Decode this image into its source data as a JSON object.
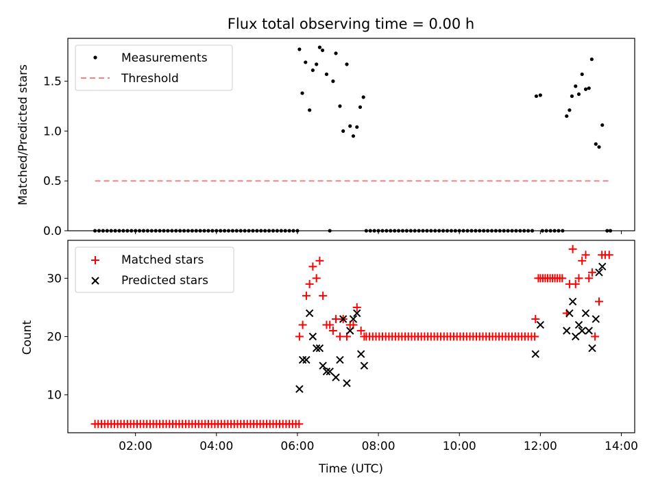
{
  "figure": {
    "title": "Flux total observing time = 0.00 h",
    "xlabel": "Time (UTC)",
    "xticks": [
      "02:00",
      "04:00",
      "06:00",
      "08:00",
      "10:00",
      "12:00",
      "14:00"
    ],
    "xtick_hours": [
      2,
      4,
      6,
      8,
      10,
      12,
      14
    ],
    "xlim_hours": [
      0.33,
      14.33
    ]
  },
  "colors": {
    "measurements": "#000000",
    "threshold": "#ff7f7f",
    "matched": "#ff0000",
    "predicted": "#000000"
  },
  "chart_data": [
    {
      "type": "scatter",
      "ylabel": "Matched/Predicted stars",
      "ylim": [
        0,
        1.93
      ],
      "yticks": [
        0.0,
        0.5,
        1.0,
        1.5
      ],
      "ytick_labels": [
        "0.0",
        "0.5",
        "1.0",
        "1.5"
      ],
      "legend": {
        "position": "upper-left",
        "entries": [
          "Measurements",
          "Threshold"
        ]
      },
      "threshold": {
        "value": 0.5,
        "x_range": [
          1.0,
          13.7
        ]
      },
      "measurements": {
        "zero_ranges": [
          [
            1.0,
            6.0,
            0.1
          ],
          [
            7.7,
            11.85,
            0.1
          ],
          [
            12.05,
            12.55,
            0.1
          ]
        ],
        "points": [
          [
            6.05,
            1.82
          ],
          [
            6.12,
            1.38
          ],
          [
            6.2,
            1.69
          ],
          [
            6.3,
            1.21
          ],
          [
            6.38,
            1.61
          ],
          [
            6.47,
            1.67
          ],
          [
            6.55,
            1.84
          ],
          [
            6.62,
            1.81
          ],
          [
            6.72,
            1.57
          ],
          [
            6.8,
            0.0
          ],
          [
            6.88,
            1.5
          ],
          [
            6.95,
            1.78
          ],
          [
            7.05,
            1.25
          ],
          [
            7.13,
            1.0
          ],
          [
            7.22,
            1.67
          ],
          [
            7.3,
            1.05
          ],
          [
            7.38,
            0.95
          ],
          [
            7.47,
            1.04
          ],
          [
            7.55,
            1.24
          ],
          [
            7.63,
            1.34
          ],
          [
            11.9,
            1.35
          ],
          [
            12.0,
            1.36
          ],
          [
            12.65,
            1.15
          ],
          [
            12.72,
            1.21
          ],
          [
            12.78,
            1.35
          ],
          [
            12.87,
            1.45
          ],
          [
            12.95,
            1.37
          ],
          [
            13.03,
            1.57
          ],
          [
            13.12,
            1.42
          ],
          [
            13.2,
            1.43
          ],
          [
            13.27,
            1.72
          ],
          [
            13.37,
            0.87
          ],
          [
            13.45,
            0.84
          ],
          [
            13.53,
            1.06
          ],
          [
            13.65,
            0.0
          ],
          [
            13.73,
            0.0
          ]
        ]
      }
    },
    {
      "type": "scatter",
      "ylabel": "Count",
      "ylim": [
        3.5,
        36.5
      ],
      "yticks": [
        10,
        20,
        30
      ],
      "ytick_labels": [
        "10",
        "20",
        "30"
      ],
      "legend": {
        "position": "upper-left",
        "entries": [
          "Matched stars",
          "Predicted stars"
        ]
      },
      "series": [
        {
          "name": "Matched stars",
          "marker": "plus",
          "ranges": [
            [
              1.0,
              6.0,
              0.08,
              5
            ],
            [
              7.7,
              11.85,
              0.08,
              20
            ],
            [
              12.0,
              12.55,
              0.06,
              30
            ]
          ],
          "points": [
            [
              6.05,
              20
            ],
            [
              6.13,
              22
            ],
            [
              6.22,
              27
            ],
            [
              6.3,
              29
            ],
            [
              6.38,
              32
            ],
            [
              6.47,
              30
            ],
            [
              6.55,
              33
            ],
            [
              6.63,
              27
            ],
            [
              6.72,
              22
            ],
            [
              6.8,
              22
            ],
            [
              6.88,
              21
            ],
            [
              6.95,
              23
            ],
            [
              7.05,
              20
            ],
            [
              7.13,
              23
            ],
            [
              7.22,
              20
            ],
            [
              7.3,
              22
            ],
            [
              7.38,
              22
            ],
            [
              7.47,
              25
            ],
            [
              7.57,
              21
            ],
            [
              7.65,
              20
            ],
            [
              11.88,
              23
            ],
            [
              11.95,
              30
            ],
            [
              12.65,
              24
            ],
            [
              12.72,
              29
            ],
            [
              12.8,
              35
            ],
            [
              12.87,
              29
            ],
            [
              12.95,
              30
            ],
            [
              13.03,
              33
            ],
            [
              13.12,
              34
            ],
            [
              13.2,
              30
            ],
            [
              13.28,
              31
            ],
            [
              13.35,
              20
            ],
            [
              13.45,
              26
            ],
            [
              13.52,
              34
            ],
            [
              13.6,
              34
            ],
            [
              13.7,
              34
            ]
          ]
        },
        {
          "name": "Predicted stars",
          "marker": "x",
          "points": [
            [
              6.05,
              11
            ],
            [
              6.13,
              16
            ],
            [
              6.22,
              16
            ],
            [
              6.3,
              24
            ],
            [
              6.38,
              20
            ],
            [
              6.47,
              18
            ],
            [
              6.55,
              18
            ],
            [
              6.63,
              15
            ],
            [
              6.72,
              14
            ],
            [
              6.8,
              14
            ],
            [
              6.95,
              13
            ],
            [
              7.05,
              16
            ],
            [
              7.13,
              23
            ],
            [
              7.22,
              12
            ],
            [
              7.3,
              21
            ],
            [
              7.38,
              23
            ],
            [
              7.47,
              24
            ],
            [
              7.57,
              17
            ],
            [
              7.65,
              15
            ],
            [
              11.88,
              17
            ],
            [
              12.0,
              22
            ],
            [
              12.65,
              21
            ],
            [
              12.72,
              24
            ],
            [
              12.8,
              26
            ],
            [
              12.87,
              20
            ],
            [
              12.95,
              22
            ],
            [
              13.03,
              21
            ],
            [
              13.12,
              24
            ],
            [
              13.2,
              21
            ],
            [
              13.28,
              18
            ],
            [
              13.37,
              23
            ],
            [
              13.45,
              31
            ],
            [
              13.53,
              32
            ]
          ]
        }
      ]
    }
  ]
}
